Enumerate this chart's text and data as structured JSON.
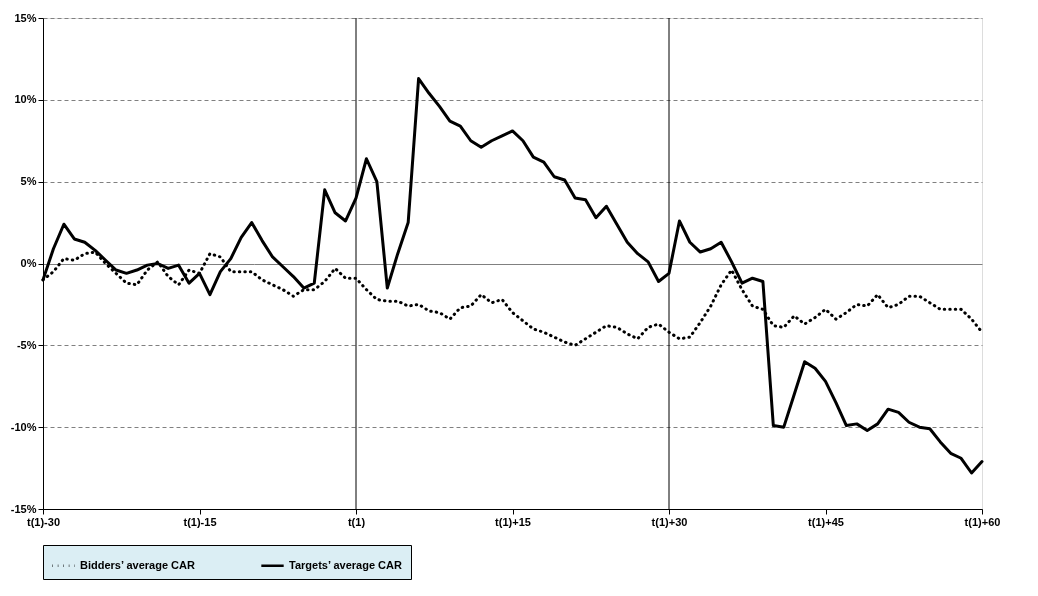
{
  "chart_data": {
    "type": "line",
    "categories": [
      "t(1)-30",
      null,
      null,
      null,
      null,
      null,
      null,
      null,
      null,
      null,
      null,
      null,
      null,
      null,
      null,
      "t(1)-15",
      null,
      null,
      null,
      null,
      null,
      null,
      null,
      null,
      null,
      null,
      null,
      null,
      null,
      null,
      "t(1)",
      null,
      null,
      null,
      null,
      null,
      null,
      null,
      null,
      null,
      null,
      null,
      null,
      null,
      null,
      "t(1)+15",
      null,
      null,
      null,
      null,
      null,
      null,
      null,
      null,
      null,
      null,
      null,
      null,
      null,
      null,
      "t(1)+30",
      null,
      null,
      null,
      null,
      null,
      null,
      null,
      null,
      null,
      null,
      null,
      null,
      null,
      null,
      "t(1)+45",
      null,
      null,
      null,
      null,
      null,
      null,
      null,
      null,
      null,
      null,
      null,
      null,
      null,
      null,
      "t(1)+60"
    ],
    "series": [
      {
        "name": "Bidders’ average CAR",
        "color": "#000000",
        "line_style": "dotted",
        "values": [
          -1.0,
          -0.5,
          0.3,
          0.2,
          0.6,
          0.7,
          0.0,
          -0.6,
          -1.2,
          -1.3,
          -0.4,
          0.1,
          -0.8,
          -1.3,
          -0.4,
          -0.6,
          0.6,
          0.4,
          -0.5,
          -0.5,
          -0.5,
          -1.0,
          -1.3,
          -1.6,
          -2.0,
          -1.6,
          -1.6,
          -1.1,
          -0.3,
          -0.9,
          -0.9,
          -1.6,
          -2.2,
          -2.3,
          -2.3,
          -2.6,
          -2.5,
          -2.9,
          -3.0,
          -3.4,
          -2.7,
          -2.6,
          -1.9,
          -2.4,
          -2.2,
          -3.0,
          -3.5,
          -4.0,
          -4.2,
          -4.5,
          -4.8,
          -5.0,
          -4.6,
          -4.2,
          -3.8,
          -3.9,
          -4.3,
          -4.6,
          -3.9,
          -3.7,
          -4.2,
          -4.6,
          -4.5,
          -3.6,
          -2.6,
          -1.3,
          -0.4,
          -1.6,
          -2.6,
          -2.8,
          -3.8,
          -3.9,
          -3.2,
          -3.7,
          -3.3,
          -2.8,
          -3.4,
          -3.0,
          -2.5,
          -2.6,
          -1.9,
          -2.7,
          -2.5,
          -2.0,
          -2.0,
          -2.4,
          -2.8,
          -2.8,
          -2.8,
          -3.4,
          -4.2
        ]
      },
      {
        "name": "Targets’ average CAR",
        "color": "#000000",
        "line_style": "solid",
        "values": [
          -1.0,
          0.9,
          2.4,
          1.5,
          1.3,
          0.8,
          0.2,
          -0.4,
          -0.6,
          -0.4,
          -0.1,
          0.0,
          -0.3,
          -0.1,
          -1.2,
          -0.6,
          -1.9,
          -0.5,
          0.3,
          1.6,
          2.5,
          1.4,
          0.4,
          -0.2,
          -0.8,
          -1.5,
          -1.2,
          4.5,
          3.1,
          2.6,
          4.0,
          6.4,
          5.0,
          -1.5,
          0.6,
          2.5,
          11.3,
          10.4,
          9.6,
          8.7,
          8.4,
          7.5,
          7.1,
          7.5,
          7.8,
          8.1,
          7.5,
          6.5,
          6.2,
          5.3,
          5.1,
          4.0,
          3.9,
          2.8,
          3.5,
          2.4,
          1.3,
          0.6,
          0.1,
          -1.1,
          -0.6,
          2.6,
          1.3,
          0.7,
          0.9,
          1.3,
          0.1,
          -1.2,
          -0.9,
          -1.1,
          -9.9,
          -10.0,
          -8.0,
          -6.0,
          -6.4,
          -7.2,
          -8.5,
          -9.9,
          -9.8,
          -10.2,
          -9.8,
          -8.9,
          -9.1,
          -9.7,
          -10.0,
          -10.1,
          -10.9,
          -11.6,
          -11.9,
          -12.8,
          -12.1
        ]
      }
    ],
    "ylim": [
      -15,
      15
    ],
    "yticks": [
      {
        "value": -15,
        "label": "-15%"
      },
      {
        "value": -10,
        "label": "-10%"
      },
      {
        "value": -5,
        "label": "-5%"
      },
      {
        "value": 0,
        "label": "0%"
      },
      {
        "value": 5,
        "label": "5%"
      },
      {
        "value": 10,
        "label": "10%"
      },
      {
        "value": 15,
        "label": "15%"
      }
    ],
    "ref_lines": [
      {
        "axis": "x",
        "value": "t(1)",
        "color": "#000000"
      },
      {
        "axis": "x",
        "value": "t(1)+30",
        "color": "#000000"
      }
    ],
    "grid": "y",
    "legend": "bottom",
    "marker": "none"
  }
}
